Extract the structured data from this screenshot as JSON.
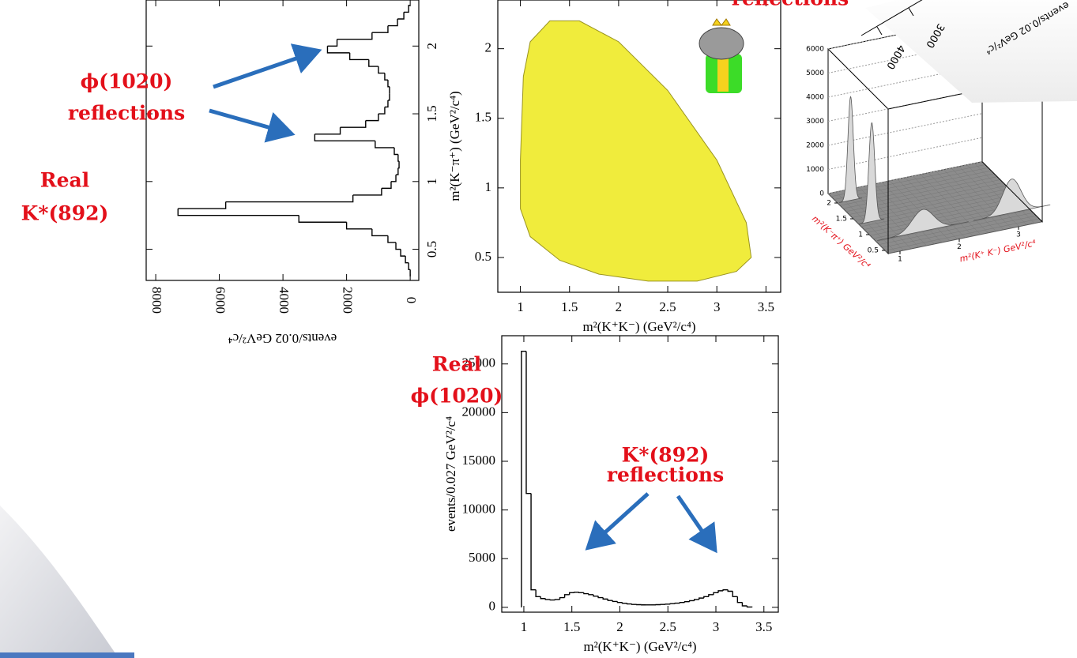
{
  "chart_data": [
    {
      "type": "histogram",
      "orientation": "horizontal",
      "color": "#000000",
      "bins": [
        0.3,
        0.35,
        0.4,
        0.45,
        0.5,
        0.55,
        0.6,
        0.65,
        0.7,
        0.75,
        0.8,
        0.85,
        0.9,
        0.95,
        1.0,
        1.05,
        1.1,
        1.15,
        1.2,
        1.25,
        1.3,
        1.35,
        1.4,
        1.45,
        1.5,
        1.55,
        1.6,
        1.65,
        1.7,
        1.75,
        1.8,
        1.85,
        1.9,
        1.95,
        2.0,
        2.05,
        2.1,
        2.15,
        2.2,
        2.25,
        2.3
      ],
      "values": [
        0,
        50,
        150,
        300,
        450,
        700,
        1200,
        2000,
        3500,
        7300,
        5800,
        1800,
        900,
        600,
        450,
        380,
        350,
        380,
        500,
        1100,
        3000,
        2200,
        1400,
        1000,
        800,
        700,
        650,
        650,
        700,
        800,
        1000,
        1300,
        1900,
        2600,
        2300,
        1200,
        700,
        400,
        200,
        50
      ],
      "xlim": [
        0.27,
        2.34
      ],
      "xticks": [
        0.5,
        1,
        1.5,
        2
      ],
      "ylim": [
        8300,
        -270
      ],
      "yticks": [
        8000,
        6000,
        4000,
        2000,
        0
      ],
      "ylabel": "events/0.02 GeV²/c⁴"
    },
    {
      "type": "region",
      "color": "#f0ec3c",
      "x": [
        1.0,
        1.03,
        1.1,
        1.3,
        1.6,
        2.0,
        2.5,
        3.0,
        3.3,
        3.35,
        3.2,
        2.8,
        2.3,
        1.8,
        1.4,
        1.1,
        1.0
      ],
      "values": [
        1.2,
        1.8,
        2.05,
        2.2,
        2.2,
        2.05,
        1.7,
        1.2,
        0.75,
        0.5,
        0.4,
        0.33,
        0.33,
        0.38,
        0.48,
        0.65,
        0.85
      ],
      "xlim": [
        0.77,
        3.65
      ],
      "xticks": [
        1,
        1.5,
        2,
        2.5,
        3,
        3.5
      ],
      "ylim": [
        0.25,
        2.35
      ],
      "yticks": [
        0.5,
        1,
        1.5,
        2
      ],
      "xlabel": "m²(K⁺K⁻) (GeV²/c⁴)",
      "ylabel": "m²(K⁻π⁺) (GeV²/c⁴)"
    },
    {
      "type": "surface",
      "color": "#d9d9d9",
      "label_color": "#e3101a",
      "x": [
        1.02,
        1.02,
        1.6,
        3.1
      ],
      "y": [
        2.0,
        1.33,
        0.8,
        0.8
      ],
      "values": [
        4300,
        4100,
        900,
        1400
      ],
      "xlim": [
        0.8,
        3.4
      ],
      "xticks": [
        1,
        2,
        3
      ],
      "ylim": [
        0.4,
        2.3
      ],
      "yticks": [
        0.5,
        1,
        1.5,
        2
      ],
      "zlim": [
        0,
        6000
      ],
      "zticks": [
        0,
        1000,
        2000,
        3000,
        4000,
        5000,
        6000
      ],
      "xlabel": "m²(K⁺ K⁻)  GeV²/c⁴",
      "ylabel": "m²(K⁻π⁺)  GeV²/c⁴"
    },
    {
      "type": "histogram",
      "orientation": "vertical",
      "color": "#000000",
      "bins": [
        0.975,
        1.025,
        1.075,
        1.125,
        1.175,
        1.225,
        1.275,
        1.325,
        1.375,
        1.425,
        1.475,
        1.525,
        1.575,
        1.625,
        1.675,
        1.725,
        1.775,
        1.825,
        1.875,
        1.925,
        1.975,
        2.025,
        2.075,
        2.125,
        2.175,
        2.225,
        2.275,
        2.325,
        2.375,
        2.425,
        2.475,
        2.525,
        2.575,
        2.625,
        2.675,
        2.725,
        2.775,
        2.825,
        2.875,
        2.925,
        2.975,
        3.025,
        3.075,
        3.125,
        3.175,
        3.225,
        3.275,
        3.325,
        3.375
      ],
      "values": [
        26300,
        11700,
        1800,
        1100,
        900,
        800,
        750,
        800,
        1000,
        1300,
        1500,
        1550,
        1500,
        1400,
        1300,
        1150,
        1000,
        850,
        700,
        600,
        500,
        420,
        350,
        300,
        270,
        250,
        250,
        250,
        270,
        300,
        330,
        380,
        430,
        500,
        580,
        680,
        800,
        950,
        1100,
        1300,
        1500,
        1700,
        1800,
        1650,
        1100,
        500,
        150,
        30
      ],
      "xlim": [
        0.77,
        3.65
      ],
      "xticks": [
        1,
        1.5,
        2,
        2.5,
        3,
        3.5
      ],
      "ylim": [
        -500,
        27900
      ],
      "yticks": [
        0,
        5000,
        10000,
        15000,
        20000,
        25000
      ],
      "xlabel": "m²(K⁺K⁻) (GeV²/c⁴)",
      "ylabel": "events/0.027 GeV²/c⁴"
    }
  ],
  "annotations": [
    {
      "lines": [
        "ϕ(1020)",
        "reflections"
      ]
    },
    {
      "lines": [
        "Real",
        "K*(892)"
      ]
    },
    {
      "lines": [
        "Real",
        "ϕ(1020)"
      ]
    },
    {
      "lines": [
        "K*(892)",
        "reflections"
      ]
    },
    {
      "lines": [
        "reflections"
      ]
    }
  ],
  "rotated_panel": {
    "tick_labels": [
      4000,
      3000
    ],
    "axis_label": "events/0.02 GeV²/c⁴"
  }
}
